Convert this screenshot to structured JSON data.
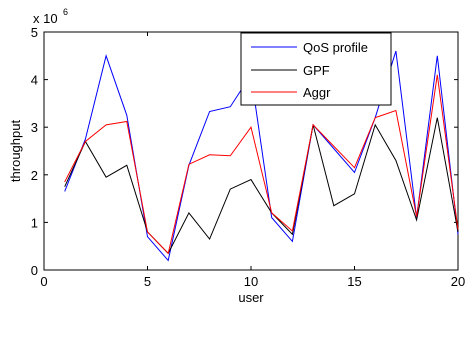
{
  "chart_data": {
    "type": "line",
    "title": "",
    "xlabel": "user",
    "ylabel": "throughput",
    "scale_note": {
      "base": "x 10",
      "exponent": "6"
    },
    "xlim": [
      0,
      20
    ],
    "ylim": [
      0,
      5
    ],
    "xticks": [
      0,
      5,
      10,
      15,
      20
    ],
    "yticks": [
      0,
      1,
      2,
      3,
      4,
      5
    ],
    "grid": false,
    "legend_position": "top-right",
    "x": [
      1,
      2,
      3,
      4,
      5,
      6,
      7,
      8,
      9,
      10,
      11,
      12,
      13,
      14,
      15,
      16,
      17,
      18,
      19,
      20
    ],
    "series": [
      {
        "name": "QoS profile",
        "color": "#0000ff",
        "values": [
          1.65,
          2.75,
          4.5,
          3.25,
          0.7,
          0.2,
          2.2,
          3.33,
          3.43,
          4.1,
          1.1,
          0.6,
          3.05,
          2.55,
          2.05,
          3.2,
          4.6,
          1.1,
          4.5,
          0.75
        ]
      },
      {
        "name": "GPF",
        "color": "#000000",
        "values": [
          1.75,
          2.7,
          1.95,
          2.2,
          0.8,
          0.35,
          1.2,
          0.65,
          1.7,
          1.9,
          1.2,
          0.75,
          3.05,
          1.35,
          1.6,
          3.05,
          2.3,
          1.05,
          3.2,
          0.8
        ]
      },
      {
        "name": "Aggr",
        "color": "#ff0000",
        "values": [
          1.85,
          2.7,
          3.05,
          3.12,
          0.8,
          0.35,
          2.22,
          2.42,
          2.4,
          3.0,
          1.2,
          0.82,
          3.05,
          2.6,
          2.15,
          3.2,
          3.35,
          1.12,
          4.1,
          0.85
        ]
      }
    ]
  }
}
